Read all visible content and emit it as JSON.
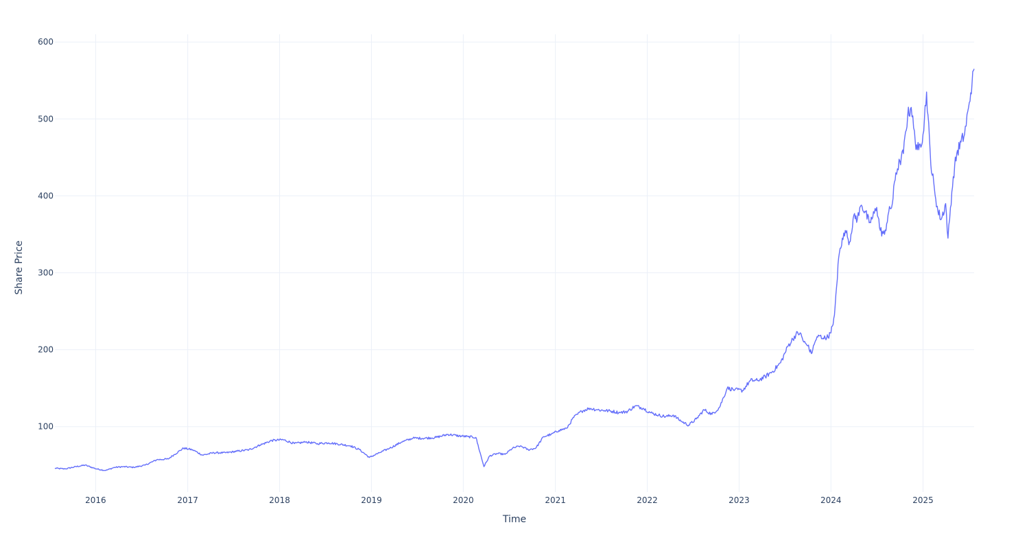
{
  "chart_data": {
    "type": "line",
    "xlabel": "Time",
    "ylabel": "Share Price",
    "xlim": [
      "2015-07-23",
      "2025-07-23"
    ],
    "ylim": [
      15,
      610
    ],
    "x_ticks": [
      "2016",
      "2017",
      "2018",
      "2019",
      "2020",
      "2021",
      "2022",
      "2023",
      "2024",
      "2025"
    ],
    "y_ticks": [
      100,
      200,
      300,
      400,
      500,
      600
    ],
    "grid": true,
    "legend": "none",
    "line_color": "#636efa",
    "series": [
      {
        "x": [
          "2015-07-23",
          "2015-09-01",
          "2015-10-15",
          "2015-11-20",
          "2016-01-05",
          "2016-02-10",
          "2016-03-15",
          "2016-04-20",
          "2016-06-01",
          "2016-07-15",
          "2016-09-01",
          "2016-10-15",
          "2016-11-01",
          "2016-12-15",
          "2017-01-20",
          "2017-03-01",
          "2017-04-15",
          "2017-06-01",
          "2017-07-15",
          "2017-09-01",
          "2017-10-15",
          "2017-12-01",
          "2018-01-15",
          "2018-03-01",
          "2018-04-15",
          "2018-06-01",
          "2018-07-15",
          "2018-09-01",
          "2018-10-10",
          "2018-11-15",
          "2018-12-24",
          "2019-02-01",
          "2019-03-15",
          "2019-05-01",
          "2019-06-15",
          "2019-08-01",
          "2019-09-15",
          "2019-11-01",
          "2019-12-15",
          "2020-01-20",
          "2020-02-20",
          "2020-03-23",
          "2020-04-15",
          "2020-05-15",
          "2020-06-15",
          "2020-07-15",
          "2020-08-15",
          "2020-09-15",
          "2020-10-15",
          "2020-11-15",
          "2020-12-15",
          "2021-01-15",
          "2021-02-15",
          "2021-03-15",
          "2021-04-15",
          "2021-05-15",
          "2021-06-15",
          "2021-07-15",
          "2021-08-15",
          "2021-09-15",
          "2021-10-15",
          "2021-11-15",
          "2021-12-15",
          "2022-01-15",
          "2022-02-15",
          "2022-03-15",
          "2022-04-15",
          "2022-05-15",
          "2022-06-15",
          "2022-07-15",
          "2022-08-15",
          "2022-09-15",
          "2022-10-15",
          "2022-11-15",
          "2022-12-15",
          "2023-01-15",
          "2023-02-15",
          "2023-03-15",
          "2023-04-15",
          "2023-05-15",
          "2023-06-15",
          "2023-07-15",
          "2023-08-15",
          "2023-09-01",
          "2023-09-15",
          "2023-10-01",
          "2023-10-15",
          "2023-11-01",
          "2023-11-15",
          "2023-12-01",
          "2023-12-15",
          "2024-01-01",
          "2024-01-15",
          "2024-02-01",
          "2024-02-15",
          "2024-03-01",
          "2024-03-15",
          "2024-04-01",
          "2024-04-15",
          "2024-05-01",
          "2024-05-15",
          "2024-06-01",
          "2024-06-15",
          "2024-07-01",
          "2024-07-15",
          "2024-08-01",
          "2024-08-15",
          "2024-09-01",
          "2024-09-15",
          "2024-10-01",
          "2024-10-15",
          "2024-11-01",
          "2024-11-15",
          "2024-12-01",
          "2024-12-15",
          "2025-01-01",
          "2025-01-15",
          "2025-02-01",
          "2025-02-15",
          "2025-03-01",
          "2025-03-15",
          "2025-04-01",
          "2025-04-10",
          "2025-04-20",
          "2025-05-01",
          "2025-05-15",
          "2025-06-01",
          "2025-06-15",
          "2025-07-01",
          "2025-07-15",
          "2025-07-23"
        ],
        "y": [
          46,
          45,
          48,
          50,
          45,
          43,
          47,
          48,
          47,
          50,
          57,
          58,
          62,
          72,
          70,
          63,
          66,
          66,
          68,
          70,
          76,
          82,
          83,
          78,
          80,
          78,
          79,
          77,
          75,
          70,
          60,
          66,
          72,
          80,
          85,
          85,
          86,
          90,
          88,
          87,
          86,
          48,
          62,
          65,
          64,
          72,
          75,
          70,
          72,
          87,
          90,
          95,
          98,
          112,
          120,
          124,
          122,
          121,
          120,
          118,
          120,
          127,
          124,
          118,
          115,
          113,
          115,
          107,
          102,
          110,
          122,
          116,
          125,
          150,
          148,
          147,
          160,
          160,
          165,
          172,
          183,
          205,
          220,
          222,
          210,
          205,
          195,
          212,
          218,
          215,
          215,
          222,
          245,
          320,
          345,
          352,
          340,
          375,
          370,
          388,
          380,
          365,
          372,
          385,
          355,
          350,
          375,
          390,
          430,
          445,
          455,
          505,
          515,
          470,
          460,
          480,
          535,
          440,
          410,
          380,
          370,
          390,
          345,
          385,
          425,
          455,
          470,
          480,
          515,
          548,
          565
        ]
      }
    ]
  }
}
